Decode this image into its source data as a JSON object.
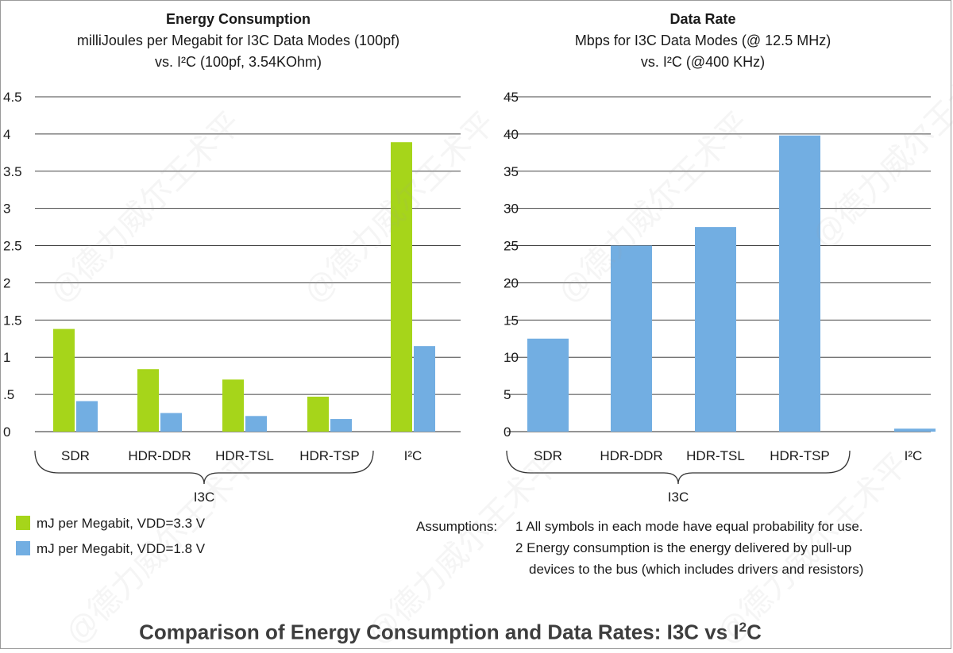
{
  "chart_data": [
    {
      "type": "bar",
      "title": "Energy Consumption",
      "subtitle_line1": "milliJoules per Megabit for I3C Data Modes (100pf)",
      "subtitle_line2": "vs. I²C (100pf, 3.54KOhm)",
      "categories": [
        "SDR",
        "HDR-DDR",
        "HDR-TSL",
        "HDR-TSP",
        "I²C"
      ],
      "group_label": "I3C",
      "ylim": [
        0,
        4.5
      ],
      "yticks": [
        0,
        0.5,
        1,
        1.5,
        2,
        2.5,
        3,
        3.5,
        4,
        4.5
      ],
      "ytick_labels": [
        "0",
        ".5",
        "1",
        "1.5",
        "2",
        "2.5",
        "3",
        "3.5",
        "4",
        "4.5"
      ],
      "grid": true,
      "series": [
        {
          "name": "mJ per Megabit, VDD=3.3 V",
          "color": "#a6d51a",
          "values": [
            1.38,
            0.84,
            0.7,
            0.47,
            3.89
          ]
        },
        {
          "name": "mJ per Megabit, VDD=1.8 V",
          "color": "#72aee2",
          "values": [
            0.41,
            0.25,
            0.21,
            0.17,
            1.15
          ]
        }
      ]
    },
    {
      "type": "bar",
      "title": "Data Rate",
      "subtitle_line1": "Mbps for I3C Data Modes (@ 12.5 MHz)",
      "subtitle_line2": "vs. I²C (@400 KHz)",
      "categories": [
        "SDR",
        "HDR-DDR",
        "HDR-TSL",
        "HDR-TSP",
        "I²C"
      ],
      "group_label": "I3C",
      "ylim": [
        0,
        45
      ],
      "yticks": [
        0,
        5,
        10,
        15,
        20,
        25,
        30,
        35,
        40,
        45
      ],
      "ytick_labels": [
        "0",
        "5",
        "10",
        "15",
        "20",
        "25",
        "30",
        "35",
        "40",
        "45"
      ],
      "grid": true,
      "series": [
        {
          "name": "Mbps",
          "color": "#72aee2",
          "values": [
            12.5,
            25,
            27.5,
            39.8,
            0.4
          ]
        }
      ]
    }
  ],
  "assumptions": {
    "label": "Assumptions:",
    "item1": "1 All symbols in each mode have equal probability for use.",
    "item2": "2 Energy consumption is the energy delivered by pull-up",
    "item3": "devices to the bus (which includes drivers and resistors)"
  },
  "caption": {
    "text": "Comparison of Energy Consumption and Data Rates: I3C vs I",
    "sup": "2",
    "suffix": "C"
  },
  "watermark": "@德力威尔王术平"
}
